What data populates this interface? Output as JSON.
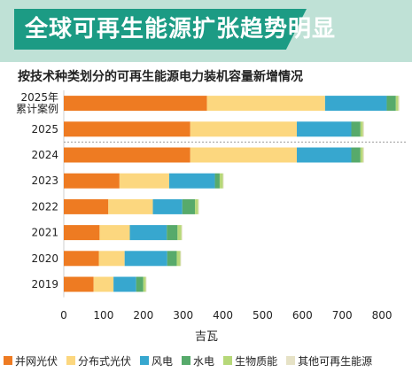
{
  "header": {
    "title": "全球可再生能源扩张趋势明显"
  },
  "chart_data": {
    "type": "bar",
    "orientation": "horizontal",
    "stacked": true,
    "title": "按技术种类划分的可再生能源电力装机容量新增情况",
    "xlabel": "吉瓦",
    "ylabel": "",
    "xlim": [
      0,
      860
    ],
    "xticks": [
      0,
      100,
      200,
      300,
      400,
      500,
      600,
      700,
      800
    ],
    "grid": false,
    "legend_position": "bottom",
    "categories": [
      "2025年\n累计案例",
      "2025",
      "2024",
      "2023",
      "2022",
      "2021",
      "2020",
      "2019"
    ],
    "series": [
      {
        "name": "并网光伏",
        "color": "#ee7b22",
        "values": [
          360,
          318,
          318,
          140,
          112,
          90,
          88,
          75
        ]
      },
      {
        "name": "分布式光伏",
        "color": "#fcd77f",
        "values": [
          297,
          268,
          268,
          125,
          112,
          76,
          65,
          50
        ]
      },
      {
        "name": "风电",
        "color": "#37a7cf",
        "values": [
          155,
          137,
          137,
          115,
          74,
          93,
          107,
          57
        ]
      },
      {
        "name": "水电",
        "color": "#57aa6b",
        "values": [
          23,
          23,
          23,
          12,
          32,
          27,
          24,
          18
        ]
      },
      {
        "name": "生物质能",
        "color": "#b6d879",
        "values": [
          6,
          6,
          6,
          8,
          8,
          10,
          9,
          6
        ]
      },
      {
        "name": "其他可再生能源",
        "color": "#e6e2c6",
        "values": [
          3,
          3,
          3,
          2,
          2,
          2,
          2,
          2
        ]
      }
    ]
  }
}
